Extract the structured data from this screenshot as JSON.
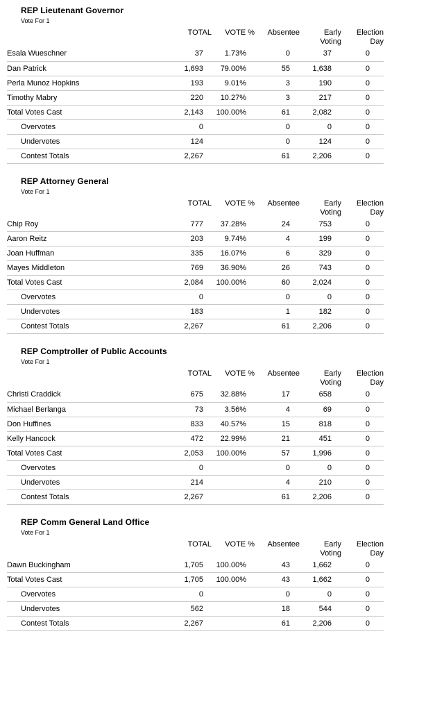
{
  "report": {
    "background_color": "#ffffff",
    "text_color": "#000000",
    "rule_color": "#c8c8c8"
  },
  "columns": [
    "TOTAL",
    "VOTE %",
    "Absentee",
    "Early\nVoting",
    "Election\nDay"
  ],
  "contests": [
    {
      "title": "REP Lieutenant Governor",
      "vote_for": "Vote For 1",
      "rows": [
        {
          "name": "Esala Wueschner",
          "total": "37",
          "pct": "1.73%",
          "absentee": "0",
          "early": "37",
          "eday": "0",
          "indent": false
        },
        {
          "name": "Dan Patrick",
          "total": "1,693",
          "pct": "79.00%",
          "absentee": "55",
          "early": "1,638",
          "eday": "0",
          "indent": false
        },
        {
          "name": "Perla Munoz Hopkins",
          "total": "193",
          "pct": "9.01%",
          "absentee": "3",
          "early": "190",
          "eday": "0",
          "indent": false
        },
        {
          "name": "Timothy Mabry",
          "total": "220",
          "pct": "10.27%",
          "absentee": "3",
          "early": "217",
          "eday": "0",
          "indent": false
        },
        {
          "name": "Total Votes Cast",
          "total": "2,143",
          "pct": "100.00%",
          "absentee": "61",
          "early": "2,082",
          "eday": "0",
          "indent": false
        },
        {
          "name": "Overvotes",
          "total": "0",
          "pct": "",
          "absentee": "0",
          "early": "0",
          "eday": "0",
          "indent": true
        },
        {
          "name": "Undervotes",
          "total": "124",
          "pct": "",
          "absentee": "0",
          "early": "124",
          "eday": "0",
          "indent": true
        },
        {
          "name": "Contest Totals",
          "total": "2,267",
          "pct": "",
          "absentee": "61",
          "early": "2,206",
          "eday": "0",
          "indent": true
        }
      ]
    },
    {
      "title": "REP Attorney General",
      "vote_for": "Vote For 1",
      "rows": [
        {
          "name": "Chip Roy",
          "total": "777",
          "pct": "37.28%",
          "absentee": "24",
          "early": "753",
          "eday": "0",
          "indent": false
        },
        {
          "name": "Aaron Reitz",
          "total": "203",
          "pct": "9.74%",
          "absentee": "4",
          "early": "199",
          "eday": "0",
          "indent": false
        },
        {
          "name": "Joan Huffman",
          "total": "335",
          "pct": "16.07%",
          "absentee": "6",
          "early": "329",
          "eday": "0",
          "indent": false
        },
        {
          "name": "Mayes Middleton",
          "total": "769",
          "pct": "36.90%",
          "absentee": "26",
          "early": "743",
          "eday": "0",
          "indent": false
        },
        {
          "name": "Total Votes Cast",
          "total": "2,084",
          "pct": "100.00%",
          "absentee": "60",
          "early": "2,024",
          "eday": "0",
          "indent": false
        },
        {
          "name": "Overvotes",
          "total": "0",
          "pct": "",
          "absentee": "0",
          "early": "0",
          "eday": "0",
          "indent": true
        },
        {
          "name": "Undervotes",
          "total": "183",
          "pct": "",
          "absentee": "1",
          "early": "182",
          "eday": "0",
          "indent": true
        },
        {
          "name": "Contest Totals",
          "total": "2,267",
          "pct": "",
          "absentee": "61",
          "early": "2,206",
          "eday": "0",
          "indent": true
        }
      ]
    },
    {
      "title": "REP Comptroller of Public Accounts",
      "vote_for": "Vote For 1",
      "rows": [
        {
          "name": "Christi Craddick",
          "total": "675",
          "pct": "32.88%",
          "absentee": "17",
          "early": "658",
          "eday": "0",
          "indent": false
        },
        {
          "name": "Michael Berlanga",
          "total": "73",
          "pct": "3.56%",
          "absentee": "4",
          "early": "69",
          "eday": "0",
          "indent": false
        },
        {
          "name": "Don Huffines",
          "total": "833",
          "pct": "40.57%",
          "absentee": "15",
          "early": "818",
          "eday": "0",
          "indent": false
        },
        {
          "name": "Kelly Hancock",
          "total": "472",
          "pct": "22.99%",
          "absentee": "21",
          "early": "451",
          "eday": "0",
          "indent": false
        },
        {
          "name": "Total Votes Cast",
          "total": "2,053",
          "pct": "100.00%",
          "absentee": "57",
          "early": "1,996",
          "eday": "0",
          "indent": false
        },
        {
          "name": "Overvotes",
          "total": "0",
          "pct": "",
          "absentee": "0",
          "early": "0",
          "eday": "0",
          "indent": true
        },
        {
          "name": "Undervotes",
          "total": "214",
          "pct": "",
          "absentee": "4",
          "early": "210",
          "eday": "0",
          "indent": true
        },
        {
          "name": "Contest Totals",
          "total": "2,267",
          "pct": "",
          "absentee": "61",
          "early": "2,206",
          "eday": "0",
          "indent": true
        }
      ]
    },
    {
      "title": "REP Comm General Land Office",
      "vote_for": "Vote For 1",
      "rows": [
        {
          "name": "Dawn Buckingham",
          "total": "1,705",
          "pct": "100.00%",
          "absentee": "43",
          "early": "1,662",
          "eday": "0",
          "indent": false
        },
        {
          "name": "Total Votes Cast",
          "total": "1,705",
          "pct": "100.00%",
          "absentee": "43",
          "early": "1,662",
          "eday": "0",
          "indent": false
        },
        {
          "name": "Overvotes",
          "total": "0",
          "pct": "",
          "absentee": "0",
          "early": "0",
          "eday": "0",
          "indent": true
        },
        {
          "name": "Undervotes",
          "total": "562",
          "pct": "",
          "absentee": "18",
          "early": "544",
          "eday": "0",
          "indent": true
        },
        {
          "name": "Contest Totals",
          "total": "2,267",
          "pct": "",
          "absentee": "61",
          "early": "2,206",
          "eday": "0",
          "indent": true
        }
      ]
    }
  ]
}
